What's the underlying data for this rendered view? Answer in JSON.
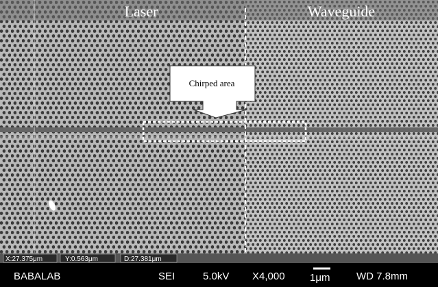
{
  "labels": {
    "left_region": "Laser",
    "right_region": "Waveguide",
    "callout": "Chirped area"
  },
  "measurements": {
    "x": "X:27.375μm",
    "y": "Y:0.563μm",
    "d": "D:27.381μm"
  },
  "status_bar": {
    "lab": "BABALAB",
    "mode": "SEI",
    "voltage": "5.0kV",
    "magnification": "X4,000",
    "scale": "1μm",
    "working_distance": "WD 7.8mm"
  }
}
